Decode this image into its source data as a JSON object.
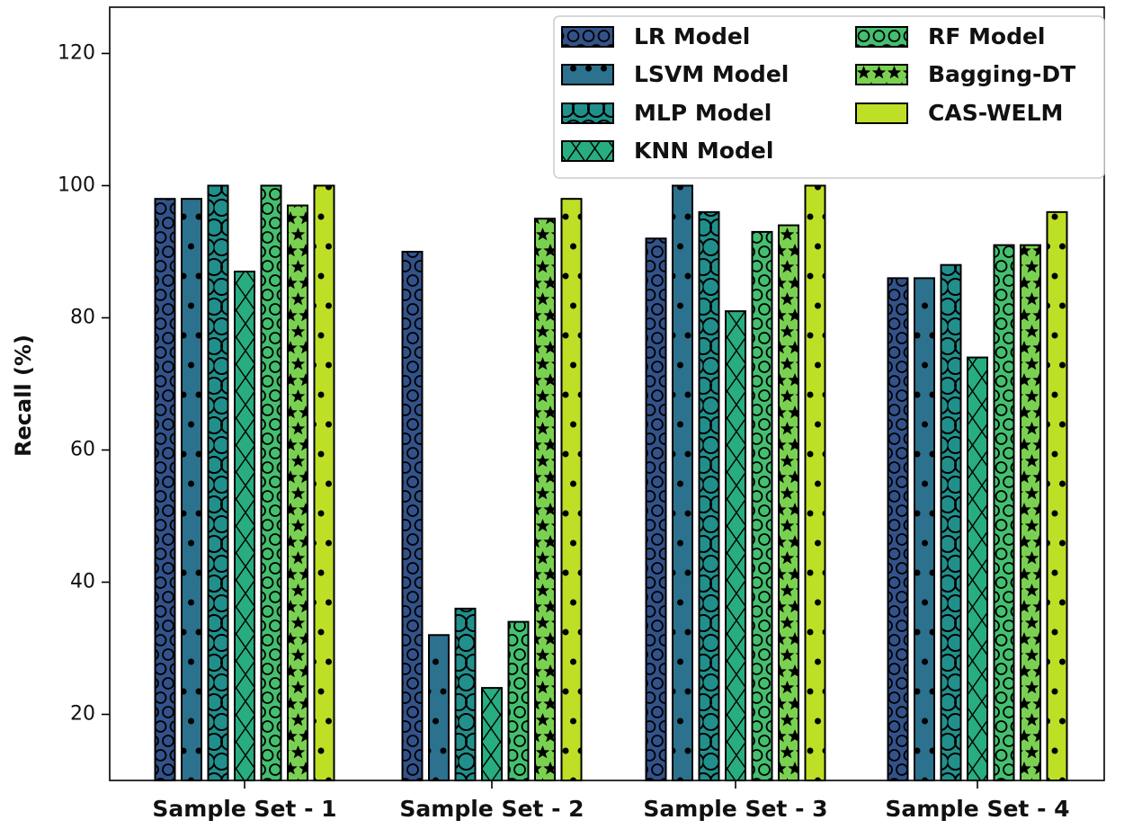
{
  "chart_data": {
    "type": "bar",
    "title": "",
    "xlabel": "",
    "ylabel": "Recall (%)",
    "ylim": [
      10,
      127
    ],
    "yticks": [
      20,
      40,
      60,
      80,
      100,
      120
    ],
    "grid": false,
    "legend_position": "top-right",
    "categories": [
      "Sample Set - 1",
      "Sample Set - 2",
      "Sample Set - 3",
      "Sample Set - 4"
    ],
    "series": [
      {
        "name": "LR Model",
        "color": "#33528a",
        "hatch": "circles",
        "values": [
          98,
          90,
          92,
          86
        ]
      },
      {
        "name": "LSVM Model",
        "color": "#2c718e",
        "hatch": "dots",
        "values": [
          98,
          32,
          100,
          86
        ]
      },
      {
        "name": "MLP Model",
        "color": "#21908c",
        "hatch": "large-circles",
        "values": [
          100,
          36,
          96,
          88
        ]
      },
      {
        "name": "KNN Model",
        "color": "#27ad80",
        "hatch": "x",
        "values": [
          87,
          24,
          81,
          74
        ]
      },
      {
        "name": "RF Model",
        "color": "#44bf70",
        "hatch": "circles",
        "values": [
          100,
          34,
          93,
          91
        ]
      },
      {
        "name": "Bagging-DT",
        "color": "#7ad151",
        "hatch": "stars",
        "values": [
          97,
          95,
          94,
          91
        ]
      },
      {
        "name": "CAS-WELM",
        "color": "#bddf26",
        "hatch": "dots",
        "values": [
          100,
          98,
          100,
          96
        ]
      }
    ]
  }
}
